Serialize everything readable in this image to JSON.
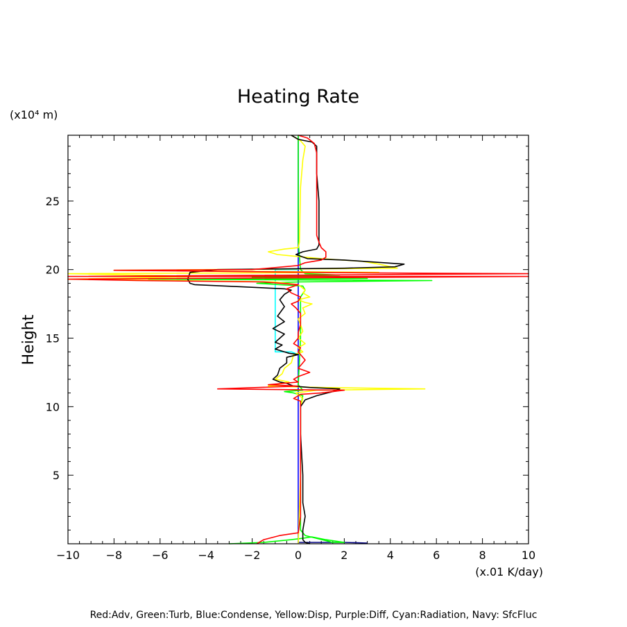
{
  "chart_data": {
    "type": "line",
    "title": "Heating Rate",
    "ylabel": "Height",
    "yunit": "(x10⁴ m)",
    "xunit": "(x.01 K/day)",
    "xlim": [
      -10,
      10
    ],
    "ylim": [
      0,
      29.8
    ],
    "xticks": [
      -10,
      -8,
      -6,
      -4,
      -2,
      0,
      2,
      4,
      6,
      8,
      10
    ],
    "xtick_labels": [
      "−10",
      "−8",
      "−6",
      "−4",
      "−2",
      "0",
      "2",
      "4",
      "6",
      "8",
      "10"
    ],
    "yticks": [
      5,
      10,
      15,
      20,
      25
    ],
    "ytick_labels": [
      "5",
      "10",
      "15",
      "20",
      "25"
    ],
    "footnote": "Red:Adv, Green:Turb, Blue:Condense, Yellow:Disp, Purple:Diff, Cyan:Radiation, Navy: SfcFluc",
    "series": [
      {
        "color": "#0000ff",
        "points": [
          [
            0.0,
            0
          ],
          [
            0.0,
            29.8
          ]
        ]
      },
      {
        "color": "#00ffff",
        "points": [
          [
            0.0,
            20.0
          ],
          [
            -1.0,
            20.0
          ],
          [
            -1.0,
            19.0
          ],
          [
            -1.0,
            14.0
          ],
          [
            -0.3,
            14.0
          ],
          [
            0.0,
            13.8
          ]
        ]
      },
      {
        "color": "#000080",
        "points": [
          [
            0.0,
            0.1
          ],
          [
            2.0,
            0.1
          ],
          [
            3.0,
            0.05
          ]
        ]
      },
      {
        "color": "#00ff00",
        "points": [
          [
            -3.0,
            0.0
          ],
          [
            -1.5,
            0.1
          ],
          [
            -0.3,
            0.3
          ],
          [
            0.2,
            0.4
          ],
          [
            0.6,
            0.5
          ],
          [
            1.2,
            0.3
          ],
          [
            2.0,
            0.1
          ],
          [
            1.5,
            0.1
          ],
          [
            0.3,
            0.6
          ],
          [
            0.1,
            1.0
          ],
          [
            0.1,
            10.0
          ],
          [
            0.2,
            10.8
          ],
          [
            -0.2,
            11.0
          ],
          [
            -0.6,
            11.1
          ],
          [
            0.2,
            11.2
          ],
          [
            0.1,
            11.4
          ],
          [
            0.0,
            11.6
          ],
          [
            0.1,
            15.0
          ],
          [
            0.1,
            18.0
          ],
          [
            0.3,
            18.5
          ],
          [
            0.2,
            18.8
          ],
          [
            -1.8,
            19.0
          ],
          [
            0.0,
            19.1
          ],
          [
            5.8,
            19.2
          ],
          [
            -6.5,
            19.3
          ],
          [
            3.0,
            19.35
          ],
          [
            -2.0,
            19.45
          ],
          [
            1.8,
            19.6
          ],
          [
            0.3,
            19.7
          ],
          [
            0.1,
            20.0
          ],
          [
            0.0,
            22.0
          ],
          [
            0.0,
            29.8
          ]
        ]
      },
      {
        "color": "#ffff00",
        "points": [
          [
            -0.3,
            29.8
          ],
          [
            0.1,
            29.4
          ],
          [
            0.3,
            29.0
          ],
          [
            0.2,
            28.0
          ],
          [
            0.1,
            26.0
          ],
          [
            0.05,
            22.0
          ],
          [
            0.0,
            21.6
          ],
          [
            -0.6,
            21.5
          ],
          [
            -1.3,
            21.3
          ],
          [
            -0.9,
            21.1
          ],
          [
            -0.3,
            21.0
          ],
          [
            1.0,
            20.8
          ],
          [
            2.8,
            20.6
          ],
          [
            3.5,
            20.4
          ],
          [
            4.3,
            20.1
          ],
          [
            -8.0,
            19.95
          ],
          [
            3.5,
            19.8
          ],
          [
            -10.0,
            19.7
          ],
          [
            -4.0,
            19.5
          ],
          [
            -10.0,
            19.3
          ],
          [
            -1.0,
            19.1
          ],
          [
            0.0,
            18.9
          ],
          [
            0.3,
            18.5
          ],
          [
            0.2,
            18.3
          ],
          [
            0.5,
            18.0
          ],
          [
            0.0,
            17.8
          ],
          [
            0.3,
            17.6
          ],
          [
            0.6,
            17.5
          ],
          [
            0.2,
            17.2
          ],
          [
            0.3,
            16.8
          ],
          [
            0.0,
            16.4
          ],
          [
            0.1,
            16.0
          ],
          [
            0.2,
            15.5
          ],
          [
            0.0,
            15.0
          ],
          [
            0.3,
            14.6
          ],
          [
            0.0,
            14.3
          ],
          [
            0.2,
            14.0
          ],
          [
            -0.2,
            13.8
          ],
          [
            -0.3,
            13.2
          ],
          [
            -0.6,
            12.8
          ],
          [
            -0.7,
            12.4
          ],
          [
            -1.0,
            12.0
          ],
          [
            -0.4,
            11.8
          ],
          [
            -1.3,
            11.5
          ],
          [
            1.0,
            11.4
          ],
          [
            5.5,
            11.3
          ],
          [
            0.8,
            11.2
          ],
          [
            -0.1,
            11.0
          ],
          [
            0.2,
            10.6
          ],
          [
            0.1,
            10.0
          ],
          [
            0.1,
            5.0
          ],
          [
            0.0,
            0.0
          ]
        ]
      },
      {
        "color": "#000000",
        "points": [
          [
            -0.3,
            29.8
          ],
          [
            0.0,
            29.5
          ],
          [
            0.6,
            29.3
          ],
          [
            0.8,
            29.0
          ],
          [
            0.8,
            27.0
          ],
          [
            0.9,
            25.0
          ],
          [
            0.9,
            23.0
          ],
          [
            0.9,
            21.8
          ],
          [
            0.8,
            21.5
          ],
          [
            0.2,
            21.3
          ],
          [
            -0.1,
            21.1
          ],
          [
            0.4,
            20.8
          ],
          [
            2.0,
            20.7
          ],
          [
            4.6,
            20.4
          ],
          [
            4.2,
            20.2
          ],
          [
            2.0,
            20.1
          ],
          [
            -3.5,
            20.0
          ],
          [
            -4.7,
            19.8
          ],
          [
            -4.8,
            19.3
          ],
          [
            -4.7,
            19.0
          ],
          [
            -4.5,
            18.9
          ],
          [
            -2.5,
            18.75
          ],
          [
            -0.6,
            18.6
          ],
          [
            -0.3,
            18.5
          ],
          [
            -0.6,
            18.2
          ],
          [
            -0.8,
            17.8
          ],
          [
            -0.6,
            17.3
          ],
          [
            -0.9,
            16.6
          ],
          [
            -0.6,
            16.2
          ],
          [
            -1.1,
            15.7
          ],
          [
            -0.6,
            15.3
          ],
          [
            -1.0,
            14.7
          ],
          [
            -0.7,
            14.5
          ],
          [
            -1.0,
            14.2
          ],
          [
            -0.4,
            13.9
          ],
          [
            0.0,
            13.8
          ],
          [
            -0.5,
            13.6
          ],
          [
            -0.5,
            13.2
          ],
          [
            -0.8,
            12.8
          ],
          [
            -0.9,
            12.3
          ],
          [
            -1.1,
            12.0
          ],
          [
            -0.8,
            11.8
          ],
          [
            -0.5,
            11.7
          ],
          [
            -0.2,
            11.5
          ],
          [
            0.5,
            11.4
          ],
          [
            1.8,
            11.3
          ],
          [
            1.5,
            11.1
          ],
          [
            0.8,
            10.8
          ],
          [
            0.3,
            10.5
          ],
          [
            0.1,
            10.0
          ],
          [
            0.1,
            8.0
          ],
          [
            0.2,
            5.0
          ],
          [
            0.2,
            3.0
          ],
          [
            0.3,
            2.0
          ],
          [
            0.2,
            1.0
          ],
          [
            0.2,
            0.3
          ],
          [
            0.3,
            0.1
          ],
          [
            0.5,
            0.0
          ]
        ]
      },
      {
        "color": "#ff0000",
        "points": [
          [
            0.0,
            29.8
          ],
          [
            0.4,
            29.6
          ],
          [
            0.7,
            29.2
          ],
          [
            0.8,
            28.5
          ],
          [
            0.8,
            26.0
          ],
          [
            0.8,
            24.0
          ],
          [
            0.8,
            23.0
          ],
          [
            0.8,
            22.5
          ],
          [
            0.9,
            22.0
          ],
          [
            1.0,
            21.6
          ],
          [
            1.2,
            21.3
          ],
          [
            1.2,
            20.9
          ],
          [
            1.0,
            20.7
          ],
          [
            0.3,
            20.5
          ],
          [
            0.0,
            20.3
          ],
          [
            -2.0,
            20.0
          ],
          [
            -8.0,
            19.95
          ],
          [
            3.5,
            19.75
          ],
          [
            10.0,
            19.7
          ],
          [
            -10.0,
            19.5
          ],
          [
            10.0,
            19.5
          ],
          [
            -10.0,
            19.3
          ],
          [
            -7.0,
            19.2
          ],
          [
            -1.5,
            19.1
          ],
          [
            0.0,
            18.9
          ],
          [
            -0.5,
            18.6
          ],
          [
            -0.3,
            18.3
          ],
          [
            0.1,
            18.0
          ],
          [
            0.0,
            17.7
          ],
          [
            -0.3,
            17.5
          ],
          [
            -0.1,
            17.2
          ],
          [
            0.1,
            16.8
          ],
          [
            0.1,
            16.0
          ],
          [
            0.0,
            15.4
          ],
          [
            0.0,
            15.0
          ],
          [
            -0.2,
            14.6
          ],
          [
            0.1,
            14.3
          ],
          [
            0.0,
            14.0
          ],
          [
            0.3,
            13.4
          ],
          [
            0.0,
            12.8
          ],
          [
            0.5,
            12.5
          ],
          [
            0.0,
            12.2
          ],
          [
            -0.2,
            12.0
          ],
          [
            0.0,
            11.8
          ],
          [
            -1.3,
            11.6
          ],
          [
            0.0,
            11.5
          ],
          [
            -3.5,
            11.3
          ],
          [
            2.0,
            11.2
          ],
          [
            1.0,
            11.0
          ],
          [
            0.1,
            10.9
          ],
          [
            -0.2,
            10.6
          ],
          [
            0.1,
            10.4
          ],
          [
            0.1,
            9.5
          ],
          [
            0.1,
            5.0
          ],
          [
            0.1,
            2.0
          ],
          [
            0.0,
            0.8
          ],
          [
            -0.8,
            0.6
          ],
          [
            -1.5,
            0.3
          ],
          [
            -1.8,
            0.0
          ]
        ]
      }
    ]
  }
}
